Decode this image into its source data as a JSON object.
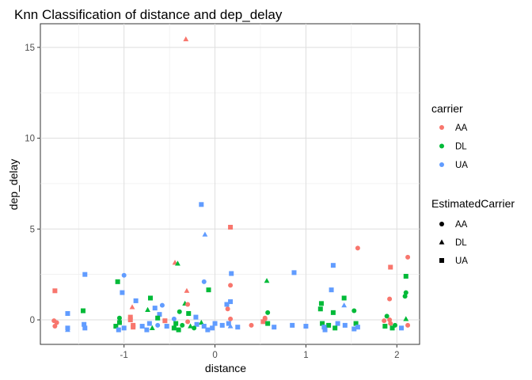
{
  "chart_data": {
    "type": "scatter",
    "title": "Knn Classification of distance and dep_delay",
    "xlabel": "distance",
    "ylabel": "dep_delay",
    "xlim": [
      -1.92,
      2.25
    ],
    "ylim": [
      -1.35,
      16.3
    ],
    "x_ticks": [
      -1,
      0,
      1,
      2
    ],
    "x_tick_labels": [
      "-1",
      "0",
      "1",
      "2"
    ],
    "y_ticks": [
      0,
      5,
      10,
      15
    ],
    "y_tick_labels": [
      "0",
      "5",
      "10",
      "15"
    ],
    "grid": true,
    "colors": {
      "AA": "#f8766d",
      "DL": "#00ba38",
      "UA": "#619cff"
    },
    "legends": [
      {
        "title": "carrier",
        "kind": "color",
        "entries": [
          "AA",
          "DL",
          "UA"
        ]
      },
      {
        "title": "EstimatedCarrier",
        "kind": "shape",
        "entries": [
          "AA",
          "DL",
          "UA"
        ],
        "shapes": [
          "circle",
          "triangle",
          "square"
        ]
      }
    ],
    "legend_position": "right",
    "points": [
      {
        "x": -0.32,
        "y": 15.45,
        "carrier": "AA",
        "est": "DL"
      },
      {
        "x": -0.15,
        "y": 6.35,
        "carrier": "UA",
        "est": "UA"
      },
      {
        "x": 0.17,
        "y": 5.1,
        "carrier": "AA",
        "est": "UA"
      },
      {
        "x": -0.11,
        "y": 4.7,
        "carrier": "UA",
        "est": "DL"
      },
      {
        "x": 1.57,
        "y": 3.95,
        "carrier": "AA",
        "est": "AA"
      },
      {
        "x": 2.12,
        "y": 3.45,
        "carrier": "AA",
        "est": "AA"
      },
      {
        "x": -0.44,
        "y": 3.15,
        "carrier": "AA",
        "est": "DL"
      },
      {
        "x": -0.41,
        "y": 3.1,
        "carrier": "DL",
        "est": "DL"
      },
      {
        "x": 1.3,
        "y": 3.0,
        "carrier": "UA",
        "est": "UA"
      },
      {
        "x": 1.93,
        "y": 2.9,
        "carrier": "AA",
        "est": "UA"
      },
      {
        "x": 0.87,
        "y": 2.6,
        "carrier": "UA",
        "est": "UA"
      },
      {
        "x": 0.18,
        "y": 2.55,
        "carrier": "UA",
        "est": "UA"
      },
      {
        "x": -1.43,
        "y": 2.5,
        "carrier": "UA",
        "est": "UA"
      },
      {
        "x": -1.0,
        "y": 2.45,
        "carrier": "UA",
        "est": "AA"
      },
      {
        "x": 2.1,
        "y": 2.4,
        "carrier": "DL",
        "est": "UA"
      },
      {
        "x": 0.57,
        "y": 2.15,
        "carrier": "DL",
        "est": "DL"
      },
      {
        "x": -1.07,
        "y": 2.1,
        "carrier": "DL",
        "est": "UA"
      },
      {
        "x": -0.12,
        "y": 2.1,
        "carrier": "UA",
        "est": "AA"
      },
      {
        "x": 0.17,
        "y": 1.9,
        "carrier": "AA",
        "est": "AA"
      },
      {
        "x": 1.28,
        "y": 1.65,
        "carrier": "UA",
        "est": "UA"
      },
      {
        "x": -0.07,
        "y": 1.65,
        "carrier": "DL",
        "est": "UA"
      },
      {
        "x": -1.76,
        "y": 1.6,
        "carrier": "AA",
        "est": "UA"
      },
      {
        "x": -0.31,
        "y": 1.6,
        "carrier": "AA",
        "est": "DL"
      },
      {
        "x": -1.02,
        "y": 1.5,
        "carrier": "UA",
        "est": "UA"
      },
      {
        "x": 2.1,
        "y": 1.5,
        "carrier": "DL",
        "est": "AA"
      },
      {
        "x": 2.09,
        "y": 1.3,
        "carrier": "DL",
        "est": "AA"
      },
      {
        "x": 1.42,
        "y": 1.2,
        "carrier": "DL",
        "est": "UA"
      },
      {
        "x": -0.71,
        "y": 1.2,
        "carrier": "DL",
        "est": "UA"
      },
      {
        "x": 1.92,
        "y": 1.15,
        "carrier": "AA",
        "est": "AA"
      },
      {
        "x": -0.87,
        "y": 1.05,
        "carrier": "UA",
        "est": "UA"
      },
      {
        "x": 0.17,
        "y": 1.0,
        "carrier": "UA",
        "est": "UA"
      },
      {
        "x": 1.17,
        "y": 0.9,
        "carrier": "DL",
        "est": "UA"
      },
      {
        "x": -0.33,
        "y": 0.9,
        "carrier": "DL",
        "est": "DL"
      },
      {
        "x": 0.13,
        "y": 0.85,
        "carrier": "UA",
        "est": "UA"
      },
      {
        "x": -0.58,
        "y": 0.8,
        "carrier": "UA",
        "est": "AA"
      },
      {
        "x": 1.42,
        "y": 0.8,
        "carrier": "UA",
        "est": "DL"
      },
      {
        "x": -0.91,
        "y": 0.7,
        "carrier": "AA",
        "est": "DL"
      },
      {
        "x": -0.66,
        "y": 0.65,
        "carrier": "UA",
        "est": "UA"
      },
      {
        "x": 1.16,
        "y": 0.6,
        "carrier": "DL",
        "est": "UA"
      },
      {
        "x": -0.74,
        "y": 0.55,
        "carrier": "DL",
        "est": "DL"
      },
      {
        "x": -1.45,
        "y": 0.5,
        "carrier": "DL",
        "est": "UA"
      },
      {
        "x": 1.53,
        "y": 0.5,
        "carrier": "DL",
        "est": "AA"
      },
      {
        "x": -0.39,
        "y": 0.45,
        "carrier": "DL",
        "est": "AA"
      },
      {
        "x": 0.58,
        "y": 0.4,
        "carrier": "DL",
        "est": "AA"
      },
      {
        "x": 1.3,
        "y": 0.4,
        "carrier": "DL",
        "est": "UA"
      },
      {
        "x": -0.29,
        "y": 0.35,
        "carrier": "DL",
        "est": "UA"
      },
      {
        "x": -1.62,
        "y": 0.35,
        "carrier": "UA",
        "est": "UA"
      },
      {
        "x": -0.61,
        "y": 0.3,
        "carrier": "UA",
        "est": "UA"
      },
      {
        "x": 1.89,
        "y": 0.2,
        "carrier": "DL",
        "est": "AA"
      },
      {
        "x": 0.55,
        "y": 0.1,
        "carrier": "AA",
        "est": "AA"
      },
      {
        "x": -1.05,
        "y": 0.1,
        "carrier": "DL",
        "est": "AA"
      },
      {
        "x": -0.21,
        "y": 0.15,
        "carrier": "UA",
        "est": "UA"
      },
      {
        "x": 2.1,
        "y": 0.05,
        "carrier": "DL",
        "est": "DL"
      },
      {
        "x": -0.93,
        "y": 0.0,
        "carrier": "AA",
        "est": "UA"
      },
      {
        "x": 0.17,
        "y": 0.05,
        "carrier": "AA",
        "est": "AA"
      },
      {
        "x": -1.77,
        "y": -0.05,
        "carrier": "AA",
        "est": "AA"
      },
      {
        "x": -0.55,
        "y": -0.05,
        "carrier": "AA",
        "est": "UA"
      },
      {
        "x": 1.86,
        "y": -0.05,
        "carrier": "AA",
        "est": "AA"
      },
      {
        "x": -0.3,
        "y": -0.1,
        "carrier": "AA",
        "est": "AA"
      },
      {
        "x": 0.53,
        "y": -0.1,
        "carrier": "AA",
        "est": "UA"
      },
      {
        "x": -1.74,
        "y": -0.15,
        "carrier": "AA",
        "est": "AA"
      },
      {
        "x": -1.05,
        "y": -0.15,
        "carrier": "DL",
        "est": "UA"
      },
      {
        "x": -0.72,
        "y": -0.2,
        "carrier": "UA",
        "est": "UA"
      },
      {
        "x": -0.43,
        "y": -0.2,
        "carrier": "DL",
        "est": "UA"
      },
      {
        "x": -0.15,
        "y": -0.15,
        "carrier": "DL",
        "est": "DL"
      },
      {
        "x": 0.15,
        "y": -0.2,
        "carrier": "UA",
        "est": "UA"
      },
      {
        "x": 0.58,
        "y": -0.2,
        "carrier": "DL",
        "est": "UA"
      },
      {
        "x": 1.18,
        "y": -0.2,
        "carrier": "DL",
        "est": "UA"
      },
      {
        "x": 1.35,
        "y": -0.2,
        "carrier": "UA",
        "est": "UA"
      },
      {
        "x": 1.55,
        "y": -0.2,
        "carrier": "DL",
        "est": "UA"
      },
      {
        "x": 1.93,
        "y": -0.2,
        "carrier": "AA",
        "est": "AA"
      },
      {
        "x": -1.44,
        "y": -0.25,
        "carrier": "UA",
        "est": "UA"
      },
      {
        "x": -0.9,
        "y": -0.3,
        "carrier": "AA",
        "est": "UA"
      },
      {
        "x": -0.63,
        "y": -0.3,
        "carrier": "UA",
        "est": "AA"
      },
      {
        "x": -0.36,
        "y": -0.3,
        "carrier": "DL",
        "est": "AA"
      },
      {
        "x": -0.2,
        "y": -0.25,
        "carrier": "UA",
        "est": "UA"
      },
      {
        "x": 0.08,
        "y": -0.3,
        "carrier": "UA",
        "est": "UA"
      },
      {
        "x": 0.4,
        "y": -0.3,
        "carrier": "AA",
        "est": "AA"
      },
      {
        "x": 0.85,
        "y": -0.3,
        "carrier": "UA",
        "est": "UA"
      },
      {
        "x": 1.25,
        "y": -0.3,
        "carrier": "DL",
        "est": "UA"
      },
      {
        "x": 1.43,
        "y": -0.3,
        "carrier": "UA",
        "est": "UA"
      },
      {
        "x": 1.98,
        "y": -0.3,
        "carrier": "DL",
        "est": "AA"
      },
      {
        "x": 2.12,
        "y": -0.3,
        "carrier": "AA",
        "est": "AA"
      },
      {
        "x": -1.76,
        "y": -0.35,
        "carrier": "AA",
        "est": "AA"
      },
      {
        "x": -1.09,
        "y": -0.35,
        "carrier": "DL",
        "est": "UA"
      },
      {
        "x": -0.8,
        "y": -0.35,
        "carrier": "UA",
        "est": "UA"
      },
      {
        "x": -0.53,
        "y": -0.35,
        "carrier": "UA",
        "est": "UA"
      },
      {
        "x": -0.27,
        "y": -0.35,
        "carrier": "DL",
        "est": "DL"
      },
      {
        "x": -0.12,
        "y": -0.35,
        "carrier": "UA",
        "est": "UA"
      },
      {
        "x": 0.17,
        "y": -0.35,
        "carrier": "UA",
        "est": "DL"
      },
      {
        "x": 1.0,
        "y": -0.35,
        "carrier": "UA",
        "est": "UA"
      },
      {
        "x": 1.2,
        "y": -0.4,
        "carrier": "UA",
        "est": "UA"
      },
      {
        "x": 1.57,
        "y": -0.4,
        "carrier": "UA",
        "est": "UA"
      },
      {
        "x": 1.87,
        "y": -0.35,
        "carrier": "DL",
        "est": "UA"
      },
      {
        "x": -1.62,
        "y": -0.45,
        "carrier": "UA",
        "est": "UA"
      },
      {
        "x": -1.43,
        "y": -0.45,
        "carrier": "UA",
        "est": "UA"
      },
      {
        "x": -1.0,
        "y": -0.45,
        "carrier": "UA",
        "est": "UA"
      },
      {
        "x": -0.9,
        "y": -0.4,
        "carrier": "AA",
        "est": "UA"
      },
      {
        "x": -0.69,
        "y": -0.45,
        "carrier": "DL",
        "est": "DL"
      },
      {
        "x": -0.45,
        "y": -0.45,
        "carrier": "DL",
        "est": "UA"
      },
      {
        "x": -0.23,
        "y": -0.45,
        "carrier": "DL",
        "est": "AA"
      },
      {
        "x": -0.03,
        "y": -0.45,
        "carrier": "UA",
        "est": "UA"
      },
      {
        "x": 0.25,
        "y": -0.4,
        "carrier": "UA",
        "est": "UA"
      },
      {
        "x": 0.65,
        "y": -0.4,
        "carrier": "UA",
        "est": "UA"
      },
      {
        "x": 1.32,
        "y": -0.45,
        "carrier": "DL",
        "est": "UA"
      },
      {
        "x": 1.95,
        "y": -0.45,
        "carrier": "DL",
        "est": "UA"
      },
      {
        "x": 2.05,
        "y": -0.45,
        "carrier": "UA",
        "est": "UA"
      },
      {
        "x": -1.06,
        "y": -0.55,
        "carrier": "UA",
        "est": "UA"
      },
      {
        "x": -0.75,
        "y": -0.55,
        "carrier": "UA",
        "est": "UA"
      },
      {
        "x": -0.4,
        "y": -0.55,
        "carrier": "DL",
        "est": "UA"
      },
      {
        "x": -0.08,
        "y": -0.55,
        "carrier": "UA",
        "est": "UA"
      },
      {
        "x": -1.62,
        "y": -0.55,
        "carrier": "UA",
        "est": "DL"
      },
      {
        "x": 1.21,
        "y": -0.55,
        "carrier": "UA",
        "est": "UA"
      },
      {
        "x": 1.53,
        "y": -0.5,
        "carrier": "UA",
        "est": "UA"
      },
      {
        "x": -0.3,
        "y": 0.85,
        "carrier": "AA",
        "est": "AA"
      },
      {
        "x": 0.14,
        "y": 0.6,
        "carrier": "AA",
        "est": "AA"
      },
      {
        "x": -0.45,
        "y": 0.05,
        "carrier": "UA",
        "est": "AA"
      },
      {
        "x": 0.55,
        "y": 0.05,
        "carrier": "AA",
        "est": "AA"
      },
      {
        "x": 1.92,
        "y": 0.0,
        "carrier": "AA",
        "est": "AA"
      },
      {
        "x": -0.93,
        "y": 0.15,
        "carrier": "AA",
        "est": "UA"
      },
      {
        "x": -0.63,
        "y": 0.1,
        "carrier": "DL",
        "est": "UA"
      },
      {
        "x": 0.0,
        "y": -0.2,
        "carrier": "UA",
        "est": "UA"
      }
    ]
  }
}
